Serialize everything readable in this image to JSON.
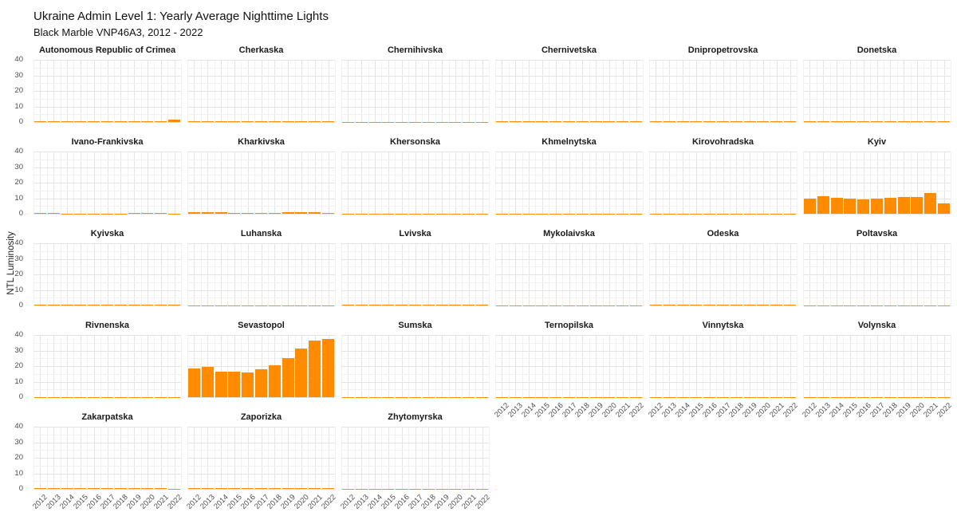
{
  "header": {
    "title": "Ukraine Admin Level 1: Yearly Average Nighttime Lights",
    "subtitle": "Black Marble VNP46A3,  2012 -  2022"
  },
  "chart_data": {
    "type": "bar",
    "title": "Ukraine Admin Level 1: Yearly Average Nighttime Lights",
    "subtitle": "Black Marble VNP46A3,  2012 -  2022",
    "ylabel": "NTL Luminosity",
    "xlabel": "",
    "ylim": [
      0,
      40
    ],
    "yticks": [
      0,
      10,
      20,
      30,
      40
    ],
    "grid": "on",
    "legend": "none",
    "facet_columns": 6,
    "bar_color": "#FF8C00",
    "x": [
      2012,
      2013,
      2014,
      2015,
      2016,
      2017,
      2018,
      2019,
      2020,
      2021,
      2022
    ],
    "facets": [
      {
        "name": "Autonomous Republic of Crimea",
        "values": [
          0.5,
          0.5,
          0.4,
          0.4,
          0.4,
          0.4,
          0.4,
          0.4,
          0.5,
          0.5,
          1.4
        ]
      },
      {
        "name": "Cherkaska",
        "values": [
          0.3,
          0.5,
          0.5,
          0.4,
          0.4,
          0.4,
          0.3,
          0.5,
          0.5,
          0.3,
          0.4
        ]
      },
      {
        "name": "Chernihivska",
        "values": [
          0.1,
          0.1,
          0.1,
          0.1,
          0.1,
          0.1,
          0.1,
          0.1,
          0.1,
          0.1,
          0.1
        ]
      },
      {
        "name": "Chernivetska",
        "values": [
          0.6,
          0.6,
          0.5,
          0.5,
          0.5,
          0.5,
          0.5,
          0.5,
          0.5,
          0.6,
          0.4
        ]
      },
      {
        "name": "Dnipropetrovska",
        "values": [
          0.6,
          0.6,
          0.6,
          0.5,
          0.5,
          0.5,
          0.5,
          0.6,
          0.6,
          0.6,
          0.4
        ]
      },
      {
        "name": "Donetska",
        "values": [
          0.7,
          0.7,
          0.6,
          0.5,
          0.5,
          0.5,
          0.5,
          0.5,
          0.5,
          0.5,
          0.4
        ]
      },
      {
        "name": "Ivano-Frankivska",
        "values": [
          0.3,
          0.3,
          0.25,
          0.25,
          0.25,
          0.25,
          0.25,
          0.3,
          0.3,
          0.3,
          0.2
        ]
      },
      {
        "name": "Kharkivska",
        "values": [
          0.8,
          0.9,
          0.8,
          0.7,
          0.7,
          0.7,
          0.7,
          0.8,
          0.8,
          0.8,
          0.5
        ]
      },
      {
        "name": "Khersonska",
        "values": [
          0.15,
          0.15,
          0.1,
          0.1,
          0.1,
          0.1,
          0.1,
          0.1,
          0.1,
          0.1,
          0.1
        ]
      },
      {
        "name": "Khmelnytska",
        "values": [
          0.25,
          0.25,
          0.2,
          0.2,
          0.2,
          0.2,
          0.2,
          0.2,
          0.25,
          0.25,
          0.15
        ]
      },
      {
        "name": "Kirovohradska",
        "values": [
          0.15,
          0.15,
          0.15,
          0.1,
          0.1,
          0.1,
          0.1,
          0.1,
          0.15,
          0.15,
          0.1
        ]
      },
      {
        "name": "Kyiv",
        "values": [
          9.9,
          11.4,
          10.2,
          9.8,
          9.3,
          9.9,
          10.2,
          10.8,
          10.8,
          13.2,
          6.5
        ]
      },
      {
        "name": "Kyivska",
        "values": [
          0.6,
          0.6,
          0.6,
          0.5,
          0.5,
          0.5,
          0.5,
          0.6,
          0.6,
          0.6,
          0.5
        ]
      },
      {
        "name": "Luhanska",
        "values": [
          0.2,
          0.2,
          0.15,
          0.1,
          0.1,
          0.1,
          0.1,
          0.1,
          0.1,
          0.1,
          0.1
        ]
      },
      {
        "name": "Lvivska",
        "values": [
          0.7,
          0.7,
          0.7,
          0.6,
          0.6,
          0.6,
          0.6,
          0.7,
          0.7,
          0.7,
          0.5
        ]
      },
      {
        "name": "Mykolaivska",
        "values": [
          0.25,
          0.25,
          0.2,
          0.2,
          0.2,
          0.2,
          0.2,
          0.2,
          0.2,
          0.2,
          0.15
        ]
      },
      {
        "name": "Odeska",
        "values": [
          0.7,
          0.5,
          0.5,
          0.5,
          0.5,
          0.5,
          0.6,
          0.6,
          0.6,
          0.6,
          0.3
        ]
      },
      {
        "name": "Poltavska",
        "values": [
          0.25,
          0.25,
          0.2,
          0.2,
          0.2,
          0.2,
          0.2,
          0.2,
          0.2,
          0.2,
          0.15
        ]
      },
      {
        "name": "Rivnenska",
        "values": [
          0.2,
          0.2,
          0.15,
          0.15,
          0.15,
          0.15,
          0.15,
          0.15,
          0.15,
          0.15,
          0.1
        ]
      },
      {
        "name": "Sevastopol",
        "values": [
          18.7,
          19.6,
          16.4,
          16.4,
          15.9,
          17.9,
          20.4,
          25.1,
          31.4,
          36.2,
          37.7
        ]
      },
      {
        "name": "Sumska",
        "values": [
          0.15,
          0.15,
          0.1,
          0.1,
          0.1,
          0.1,
          0.1,
          0.1,
          0.1,
          0.1,
          0.1
        ]
      },
      {
        "name": "Ternopilska",
        "values": [
          0.2,
          0.2,
          0.15,
          0.15,
          0.15,
          0.15,
          0.15,
          0.15,
          0.15,
          0.15,
          0.1
        ]
      },
      {
        "name": "Vinnytska",
        "values": [
          0.25,
          0.25,
          0.2,
          0.2,
          0.2,
          0.2,
          0.2,
          0.2,
          0.2,
          0.2,
          0.15
        ]
      },
      {
        "name": "Volynska",
        "values": [
          0.2,
          0.2,
          0.15,
          0.15,
          0.15,
          0.15,
          0.15,
          0.15,
          0.15,
          0.15,
          0.1
        ]
      },
      {
        "name": "Zakarpatska",
        "values": [
          0.35,
          0.35,
          0.3,
          0.3,
          0.3,
          0.3,
          0.3,
          0.3,
          0.3,
          0.3,
          0.2
        ]
      },
      {
        "name": "Zaporizka",
        "values": [
          0.4,
          0.4,
          0.35,
          0.35,
          0.35,
          0.35,
          0.35,
          0.4,
          0.4,
          0.35,
          0.3
        ]
      },
      {
        "name": "Zhytomyrska",
        "values": [
          0.2,
          0.2,
          0.15,
          0.15,
          0.15,
          0.15,
          0.15,
          0.15,
          0.15,
          0.15,
          0.1
        ]
      }
    ]
  }
}
